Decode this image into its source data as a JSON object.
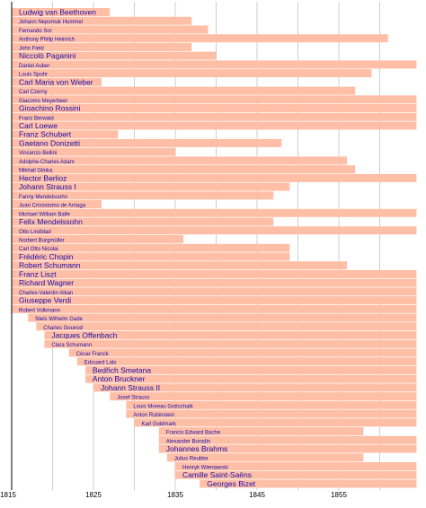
{
  "chart_data": {
    "type": "bar",
    "orientation": "horizontal-timeline",
    "xlim": [
      1815,
      1864.5
    ],
    "x_ticks": [
      1815,
      1825,
      1835,
      1845,
      1855
    ],
    "x_tick_labels": [
      "1815",
      "1825",
      "1835",
      "1845",
      "1855"
    ],
    "bar_color": "#ffbfa7",
    "label_color": "#1a0dab",
    "grid": "vertical",
    "open_ended_end": 1864.5,
    "series": [
      {
        "name": "Ludwig van Beethoven",
        "start": 1815,
        "end": 1827,
        "size": "big"
      },
      {
        "name": "Johann Nepomuk Hummel",
        "start": 1815,
        "end": 1837,
        "size": "small"
      },
      {
        "name": "Fernando Sor",
        "start": 1815,
        "end": 1839,
        "size": "small"
      },
      {
        "name": "Anthony Philip Heinrich",
        "start": 1815,
        "end": 1861,
        "size": "small"
      },
      {
        "name": "John Field",
        "start": 1815,
        "end": 1837,
        "size": "small"
      },
      {
        "name": "Niccolò Paganini",
        "start": 1815,
        "end": 1840,
        "size": "big"
      },
      {
        "name": "Daniel Auber",
        "start": 1815,
        "end": 1864.5,
        "size": "small"
      },
      {
        "name": "Louis Spohr",
        "start": 1815,
        "end": 1859,
        "size": "small"
      },
      {
        "name": "Carl Maria von Weber",
        "start": 1815,
        "end": 1826,
        "size": "big"
      },
      {
        "name": "Carl Czerny",
        "start": 1815,
        "end": 1857,
        "size": "small"
      },
      {
        "name": "Giacomo Meyerbeer",
        "start": 1815,
        "end": 1864.5,
        "size": "small"
      },
      {
        "name": "Gioachino Rossini",
        "start": 1815,
        "end": 1864.5,
        "size": "big"
      },
      {
        "name": "Franz Berwald",
        "start": 1815,
        "end": 1864.5,
        "size": "small"
      },
      {
        "name": "Carl Loewe",
        "start": 1815,
        "end": 1864.5,
        "size": "big"
      },
      {
        "name": "Franz Schubert",
        "start": 1815,
        "end": 1828,
        "size": "big"
      },
      {
        "name": "Gaetano Donizetti",
        "start": 1815,
        "end": 1848,
        "size": "big"
      },
      {
        "name": "Vincenzo Bellini",
        "start": 1815,
        "end": 1835,
        "size": "small"
      },
      {
        "name": "Adolphe-Charles Adam",
        "start": 1815,
        "end": 1856,
        "size": "small"
      },
      {
        "name": "Mikhail Glinka",
        "start": 1815,
        "end": 1857,
        "size": "small"
      },
      {
        "name": "Hector Berlioz",
        "start": 1815,
        "end": 1864.5,
        "size": "big"
      },
      {
        "name": "Johann Strauss I",
        "start": 1815,
        "end": 1849,
        "size": "big"
      },
      {
        "name": "Fanny Mendelssohn",
        "start": 1815,
        "end": 1847,
        "size": "small"
      },
      {
        "name": "Juan Crisóstomo de Arriaga",
        "start": 1815,
        "end": 1826,
        "size": "small"
      },
      {
        "name": "Michael William Balfe",
        "start": 1815,
        "end": 1864.5,
        "size": "small"
      },
      {
        "name": "Felix Mendelssohn",
        "start": 1815,
        "end": 1847,
        "size": "big"
      },
      {
        "name": "Otto Lindblad",
        "start": 1815,
        "end": 1864.5,
        "size": "small"
      },
      {
        "name": "Norbert Burgmüller",
        "start": 1815,
        "end": 1836,
        "size": "small"
      },
      {
        "name": "Carl Otto Nicolai",
        "start": 1815,
        "end": 1849,
        "size": "small"
      },
      {
        "name": "Frédéric Chopin",
        "start": 1815,
        "end": 1849,
        "size": "big"
      },
      {
        "name": "Robert Schumann",
        "start": 1815,
        "end": 1856,
        "size": "big"
      },
      {
        "name": "Franz Liszt",
        "start": 1815,
        "end": 1864.5,
        "size": "big"
      },
      {
        "name": "Richard Wagner",
        "start": 1815,
        "end": 1864.5,
        "size": "big"
      },
      {
        "name": "Charles-Valentin Alkan",
        "start": 1815,
        "end": 1864.5,
        "size": "small"
      },
      {
        "name": "Giuseppe Verdi",
        "start": 1815,
        "end": 1864.5,
        "size": "big"
      },
      {
        "name": "Robert Volkmann",
        "start": 1815,
        "end": 1864.5,
        "size": "small"
      },
      {
        "name": "Niels Wilhelm Gade",
        "start": 1817,
        "end": 1864.5,
        "size": "small"
      },
      {
        "name": "Charles Gounod",
        "start": 1818,
        "end": 1864.5,
        "size": "small"
      },
      {
        "name": "Jacques Offenbach",
        "start": 1819,
        "end": 1864.5,
        "size": "big"
      },
      {
        "name": "Clara Schumann",
        "start": 1819,
        "end": 1864.5,
        "size": "small"
      },
      {
        "name": "César Franck",
        "start": 1822,
        "end": 1864.5,
        "size": "small"
      },
      {
        "name": "Edouard Lalo",
        "start": 1823,
        "end": 1864.5,
        "size": "small"
      },
      {
        "name": "Bedřich Smetana",
        "start": 1824,
        "end": 1864.5,
        "size": "big"
      },
      {
        "name": "Anton Bruckner",
        "start": 1824,
        "end": 1864.5,
        "size": "big"
      },
      {
        "name": "Johann Strauss II",
        "start": 1825,
        "end": 1864.5,
        "size": "big"
      },
      {
        "name": "Josef Strauss",
        "start": 1827,
        "end": 1864.5,
        "size": "small"
      },
      {
        "name": "Louis Moreau Gottschalk",
        "start": 1829,
        "end": 1864.5,
        "size": "small"
      },
      {
        "name": "Anton Rubinstein",
        "start": 1829,
        "end": 1864.5,
        "size": "small"
      },
      {
        "name": "Karl Goldmark",
        "start": 1830,
        "end": 1864.5,
        "size": "small"
      },
      {
        "name": "Francis Edward Bache",
        "start": 1833,
        "end": 1858,
        "size": "small"
      },
      {
        "name": "Alexander Borodin",
        "start": 1833,
        "end": 1864.5,
        "size": "small"
      },
      {
        "name": "Johannes Brahms",
        "start": 1833,
        "end": 1864.5,
        "size": "big"
      },
      {
        "name": "Julius Reubke",
        "start": 1834,
        "end": 1858,
        "size": "small"
      },
      {
        "name": "Henryk Wieniawski",
        "start": 1835,
        "end": 1864.5,
        "size": "small"
      },
      {
        "name": "Camille Saint-Saëns",
        "start": 1835,
        "end": 1864.5,
        "size": "big"
      },
      {
        "name": "Georges Bizet",
        "start": 1838,
        "end": 1864.5,
        "size": "big"
      }
    ]
  }
}
